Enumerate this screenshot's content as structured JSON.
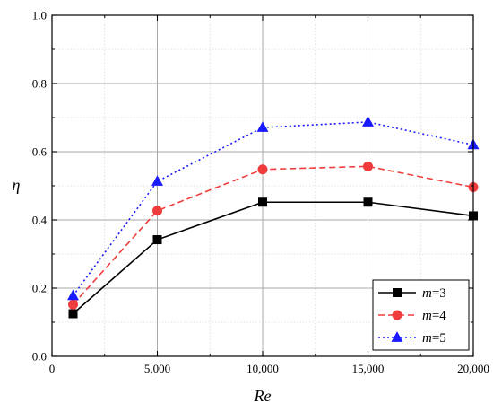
{
  "chart_data": {
    "type": "line",
    "xlabel": "Re",
    "ylabel": "η",
    "x": [
      1000,
      5000,
      10000,
      15000,
      20000
    ],
    "xlim": [
      0,
      20000
    ],
    "ylim": [
      0.0,
      1.0
    ],
    "x_ticks": [
      0,
      5000,
      10000,
      15000,
      20000
    ],
    "x_tick_labels": [
      "0",
      "5,000",
      "10,000",
      "15,000",
      "20,000"
    ],
    "y_ticks": [
      0.0,
      0.2,
      0.4,
      0.6,
      0.8,
      1.0
    ],
    "y_tick_labels": [
      "0.0",
      "0.2",
      "0.4",
      "0.6",
      "0.8",
      "1.0"
    ],
    "grid": true,
    "legend_position": "bottom-right",
    "series": [
      {
        "name": "m=3",
        "name_var": "m",
        "name_val": "=3",
        "values": [
          0.125,
          0.342,
          0.452,
          0.452,
          0.412
        ],
        "color": "#000000",
        "marker": "square",
        "line_style": "solid"
      },
      {
        "name": "m=4",
        "name_var": "m",
        "name_val": "=4",
        "values": [
          0.152,
          0.427,
          0.548,
          0.557,
          0.496
        ],
        "color": "#f03c3c",
        "marker": "circle",
        "line_style": "dashed"
      },
      {
        "name": "m=5",
        "name_var": "m",
        "name_val": "=5",
        "values": [
          0.178,
          0.513,
          0.671,
          0.687,
          0.62
        ],
        "color": "#1a1aff",
        "marker": "triangle",
        "line_style": "dotted"
      }
    ]
  }
}
